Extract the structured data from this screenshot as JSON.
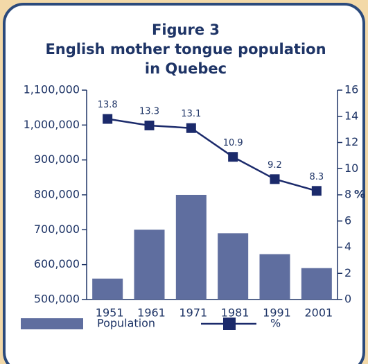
{
  "chart_data": {
    "type": "bar_line",
    "title_lines": [
      "Figure 3",
      "English mother tongue population",
      "in Quebec"
    ],
    "categories": [
      "1951",
      "1961",
      "1971",
      "1981",
      "1991",
      "2001"
    ],
    "series": [
      {
        "name": "Population",
        "color": "#5f6e9f",
        "type": "bar",
        "values": [
          560000,
          700000,
          800000,
          690000,
          630000,
          590000
        ]
      },
      {
        "name": "%",
        "color": "#1b2a6b",
        "type": "line",
        "axis": "y2",
        "values": [
          13.8,
          13.3,
          13.1,
          10.9,
          9.2,
          8.3
        ]
      }
    ],
    "ylim": [
      500000,
      1100000
    ],
    "yticks": [
      {
        "value": 500000,
        "label": "500,000"
      },
      {
        "value": 600000,
        "label": "600,000"
      },
      {
        "value": 700000,
        "label": "700,000"
      },
      {
        "value": 800000,
        "label": "800,000"
      },
      {
        "value": 900000,
        "label": "900,000"
      },
      {
        "value": 1000000,
        "label": "1,000,000"
      },
      {
        "value": 1100000,
        "label": "1,100,000"
      }
    ],
    "y2lim": [
      0,
      16
    ],
    "y2ticks": [
      0,
      2,
      4,
      6,
      8,
      10,
      12,
      14,
      16
    ],
    "y2label": "%"
  }
}
